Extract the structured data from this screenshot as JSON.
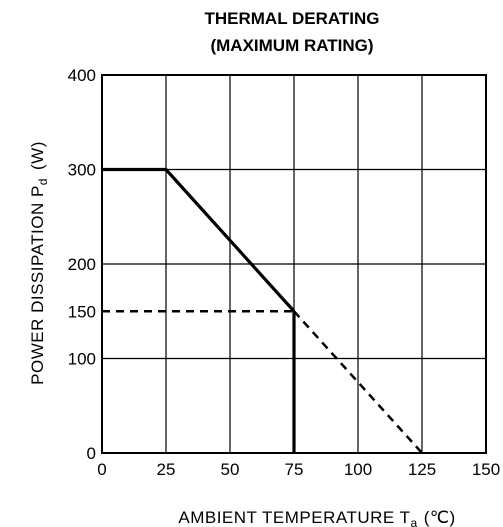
{
  "chart_data": {
    "type": "line",
    "title_line1": "THERMAL DERATING",
    "title_line2": "(MAXIMUM RATING)",
    "xlabel_main": "AMBIENT TEMPERATURE T",
    "xlabel_sub": "a",
    "xlabel_unit": "(℃)",
    "ylabel_main": "POWER DISSIPATION P",
    "ylabel_sub": "d",
    "ylabel_unit": "(W)",
    "xlim": [
      0,
      150
    ],
    "ylim": [
      0,
      400
    ],
    "x_ticks": [
      {
        "value": 0,
        "label": "0"
      },
      {
        "value": 25,
        "label": "25"
      },
      {
        "value": 50,
        "label": "50"
      },
      {
        "value": 75,
        "label": "75"
      },
      {
        "value": 100,
        "label": "100"
      },
      {
        "value": 125,
        "label": "125"
      },
      {
        "value": 150,
        "label": "150"
      }
    ],
    "y_ticks": [
      {
        "value": 0,
        "label": "0"
      },
      {
        "value": 100,
        "label": "100"
      },
      {
        "value": 150,
        "label": "150"
      },
      {
        "value": 200,
        "label": "200"
      },
      {
        "value": 300,
        "label": "300"
      },
      {
        "value": 400,
        "label": "400"
      }
    ],
    "x_grid": [
      25,
      50,
      75,
      100,
      125
    ],
    "y_grid": [
      100,
      200,
      300
    ],
    "grid": true,
    "series": [
      {
        "style": "solid",
        "segments": [
          {
            "x": [
              0,
              25,
              75
            ],
            "y": [
              300,
              300,
              150
            ]
          },
          {
            "x": [
              75,
              75
            ],
            "y": [
              150,
              0
            ]
          }
        ]
      },
      {
        "style": "dashed",
        "segments": [
          {
            "x": [
              0,
              75
            ],
            "y": [
              150,
              150
            ]
          },
          {
            "x": [
              75,
              125
            ],
            "y": [
              150,
              0
            ]
          }
        ]
      }
    ]
  }
}
